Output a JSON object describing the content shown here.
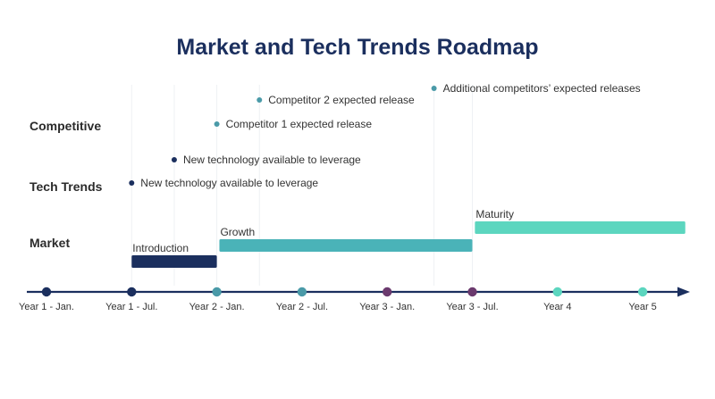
{
  "title": "Market and Tech Trends Roadmap",
  "rows": {
    "competitive": "Competitive",
    "tech_trends": "Tech Trends",
    "market": "Market"
  },
  "timeline": {
    "ticks": [
      "Year 1 - Jan.",
      "Year 1 - Jul.",
      "Year 2 - Jan.",
      "Year 2 - Jul.",
      "Year 3 - Jan.",
      "Year 3 - Jul.",
      "Year 4",
      "Year 5"
    ],
    "dot_colors": [
      "#1b2f5e",
      "#1b2f5e",
      "#4a9aa8",
      "#4a9aa8",
      "#6b3a6e",
      "#6b3a6e",
      "#5cd6bf",
      "#5cd6bf"
    ],
    "axis_color": "#1b2f5e"
  },
  "milestones": [
    {
      "text": "New technology available to leverage",
      "tick": 1,
      "row": "tech_low",
      "color": "#1b2f5e"
    },
    {
      "text": "New technology available to leverage",
      "tick": 1.5,
      "row": "tech_high",
      "color": "#1b2f5e"
    },
    {
      "text": "Competitor 1 expected release",
      "tick": 2,
      "row": "comp_low",
      "color": "#4a9aa8"
    },
    {
      "text": "Competitor 2 expected release",
      "tick": 2.5,
      "row": "comp_mid",
      "color": "#4a9aa8"
    },
    {
      "text": "Additional competitors’ expected releases",
      "tick": 4.55,
      "row": "comp_high",
      "color": "#4a9aa8"
    }
  ],
  "phases": [
    {
      "label": "Introduction",
      "start": 1,
      "end": 2,
      "color": "#1b2f5e"
    },
    {
      "label": "Growth",
      "start": 2.03,
      "end": 5,
      "color": "#4ab3b8"
    },
    {
      "label": "Maturity",
      "start": 5.03,
      "end": 7.5,
      "color": "#5cd6bf"
    }
  ],
  "colors": {
    "title": "#1b2f5e",
    "label": "#2b2b2b",
    "tick_label": "#333333"
  }
}
